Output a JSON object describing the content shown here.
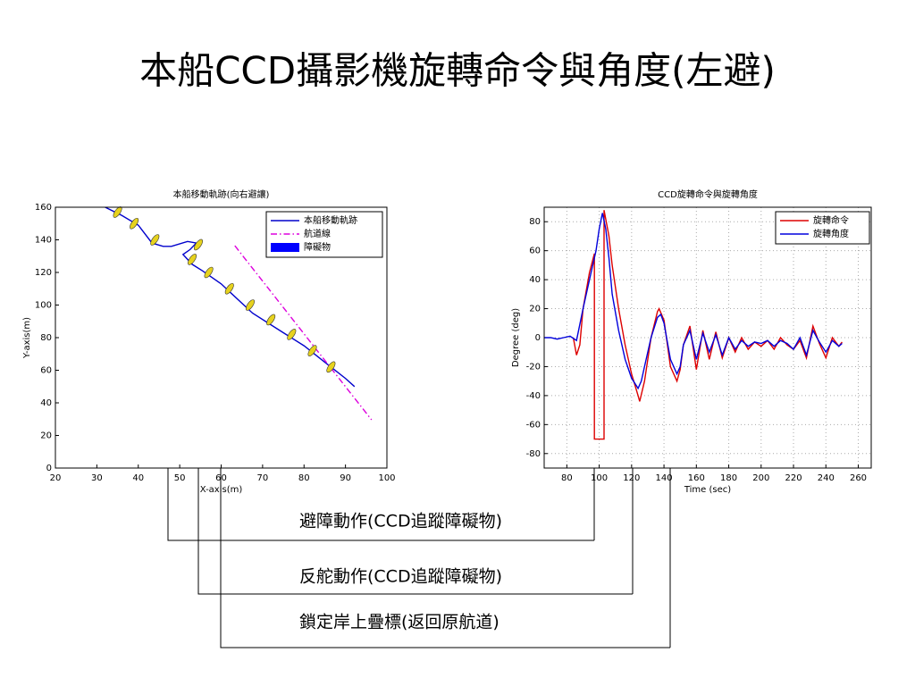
{
  "title": "本船CCD攝影機旋轉命令與角度(左避)",
  "chart_data": [
    {
      "type": "line",
      "title": "本船移動軌跡(向右避讓)",
      "x_label": "X-axis(m)",
      "y_label": "Y-axis(m)",
      "xlim": [
        20,
        100
      ],
      "ylim": [
        0,
        160
      ],
      "xticks": [
        20,
        30,
        40,
        50,
        60,
        70,
        80,
        90,
        100
      ],
      "yticks": [
        0,
        20,
        40,
        60,
        80,
        100,
        120,
        140,
        160
      ],
      "grid": false,
      "legend": "upper right",
      "series": [
        {
          "name": "本船移動軌跡",
          "color": "#0000cc",
          "style": "solid",
          "x": [
            32,
            36,
            40,
            43.3,
            46,
            48,
            51.9,
            54,
            52.5,
            50.8,
            53,
            55.5,
            60,
            67.6,
            75,
            80,
            85,
            90,
            92.2
          ],
          "values": [
            160,
            155,
            149,
            138,
            136,
            136,
            139,
            138,
            134,
            131,
            125,
            121,
            113,
            95,
            83,
            75,
            65,
            55,
            50
          ]
        },
        {
          "name": "航道線",
          "color": "#dd00dd",
          "style": "dashdot",
          "x": [
            63.3,
            96.3
          ],
          "values": [
            136.4,
            29.6
          ]
        },
        {
          "name": "障礙物",
          "color": "#0000ff",
          "fill": "#e6d21e",
          "style": "marker",
          "x": [
            35,
            39,
            44,
            54.5,
            53,
            57,
            62,
            67,
            72,
            77,
            82,
            86.5
          ],
          "values": [
            157,
            150,
            140,
            137,
            128,
            120,
            110,
            100,
            91,
            82,
            72,
            62
          ]
        }
      ]
    },
    {
      "type": "line",
      "title": "CCD旋轉命令與旋轉角度",
      "x_label": "Time (sec)",
      "y_label": "Degree (deg)",
      "xlim": [
        66,
        268
      ],
      "ylim": [
        -90,
        90
      ],
      "xticks": [
        80,
        100,
        120,
        140,
        160,
        180,
        200,
        220,
        240,
        260
      ],
      "yticks": [
        -80,
        -60,
        -40,
        -20,
        0,
        20,
        40,
        60,
        80
      ],
      "grid": true,
      "legend": "upper right",
      "series": [
        {
          "name": "旋轉命令",
          "color": "#dd0000",
          "style": "solid",
          "x": [
            84,
            86,
            88,
            90,
            94,
            97,
            97,
            103,
            103,
            106,
            108,
            112,
            116,
            120,
            124,
            125,
            128,
            132,
            136,
            137,
            140,
            144,
            148,
            150,
            152,
            156,
            160,
            164,
            168,
            172,
            176,
            180,
            184,
            188,
            192,
            196,
            200,
            204,
            208,
            212,
            216,
            220,
            224,
            228,
            232,
            236,
            240,
            244,
            248,
            250
          ],
          "values": [
            0,
            -12,
            -5,
            20,
            45,
            58,
            -70,
            -70,
            88,
            70,
            50,
            20,
            -5,
            -25,
            -40,
            -44,
            -30,
            0,
            18,
            20,
            12,
            -20,
            -30,
            -22,
            -5,
            8,
            -22,
            5,
            -15,
            4,
            -14,
            0,
            -10,
            0,
            -8,
            -3,
            -6,
            -2,
            -8,
            0,
            -5,
            -8,
            -2,
            -14,
            8,
            -4,
            -14,
            0,
            -6,
            -3
          ]
        },
        {
          "name": "旋轉角度",
          "color": "#0000dd",
          "style": "solid",
          "x": [
            66,
            70,
            74,
            78,
            82,
            86,
            90,
            94,
            98,
            100,
            102,
            104,
            106,
            108,
            112,
            116,
            120,
            124,
            126,
            128,
            132,
            136,
            138,
            140,
            144,
            148,
            150,
            152,
            156,
            160,
            164,
            168,
            172,
            176,
            180,
            184,
            188,
            192,
            196,
            200,
            204,
            208,
            212,
            216,
            220,
            224,
            228,
            232,
            236,
            240,
            244,
            248,
            250
          ],
          "values": [
            0,
            0,
            -1,
            0,
            1,
            -2,
            20,
            40,
            60,
            75,
            86,
            75,
            55,
            30,
            5,
            -15,
            -28,
            -35,
            -30,
            -20,
            0,
            14,
            16,
            10,
            -15,
            -25,
            -20,
            -5,
            5,
            -15,
            3,
            -10,
            2,
            -12,
            0,
            -8,
            -2,
            -6,
            -3,
            -4,
            -2,
            -6,
            -2,
            -4,
            -8,
            0,
            -12,
            5,
            -3,
            -10,
            -2,
            -6,
            -4
          ]
        }
      ]
    }
  ],
  "annotations": [
    "避障動作(CCD追蹤障礙物)",
    "反舵動作(CCD追蹤障礙物)",
    "鎖定岸上疊標(返回原航道)"
  ]
}
